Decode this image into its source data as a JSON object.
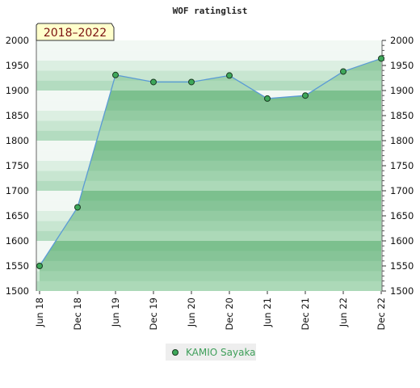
{
  "chart_data": {
    "type": "area",
    "title": "WOF ratinglist",
    "period_badge": "2018–2022",
    "x": [
      "Jun 18",
      "Dec 18",
      "Jun 19",
      "Dec 19",
      "Jun 20",
      "Dec 20",
      "Jun 21",
      "Dec 21",
      "Jun 22",
      "Dec 22"
    ],
    "series": [
      {
        "name": "KAMIO Sayaka",
        "values": [
          1550,
          1667,
          1931,
          1917,
          1917,
          1930,
          1884,
          1890,
          1938,
          1964
        ]
      }
    ],
    "ylim": [
      1500,
      2000
    ],
    "yticks": [
      1500,
      1550,
      1600,
      1650,
      1700,
      1750,
      1800,
      1850,
      1900,
      1950,
      2000
    ],
    "grid": "horizontal bands",
    "legend": "bottom-center",
    "colors": {
      "area_fill": "#93cfa5",
      "line": "#5b9bd5",
      "marker": "#3ea85a",
      "band_light": [
        "#f2f8f4",
        "#dcefe2",
        "#c8e6d1",
        "#b3dcc0"
      ],
      "band_dark": [
        "#acd9b8",
        "#9fd2ad",
        "#93cba2",
        "#86c497",
        "#7cc08e"
      ]
    }
  }
}
